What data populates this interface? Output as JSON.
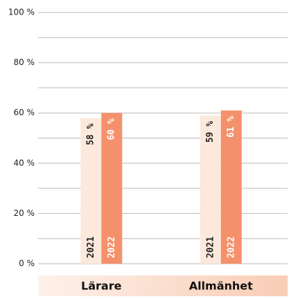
{
  "chart_data": {
    "type": "bar",
    "categories": [
      "Lärare",
      "Allmänhet"
    ],
    "series": [
      {
        "name": "2021",
        "color": "#fce9dc",
        "values": [
          58,
          59
        ],
        "value_labels": [
          "58 %",
          "59 %"
        ]
      },
      {
        "name": "2022",
        "color": "#f4916c",
        "values": [
          60,
          61
        ],
        "value_labels": [
          "60 %",
          "61 %"
        ]
      }
    ],
    "ylim": [
      0,
      100
    ],
    "yticks": [
      {
        "value": 0,
        "label": "0 %"
      },
      {
        "value": 20,
        "label": "20 %"
      },
      {
        "value": 40,
        "label": "40 %"
      },
      {
        "value": 60,
        "label": "60 %"
      },
      {
        "value": 80,
        "label": "80 %"
      },
      {
        "value": 100,
        "label": "100 %"
      }
    ],
    "minor_yticks": [
      10,
      30,
      50,
      70,
      90
    ],
    "grid": true
  }
}
